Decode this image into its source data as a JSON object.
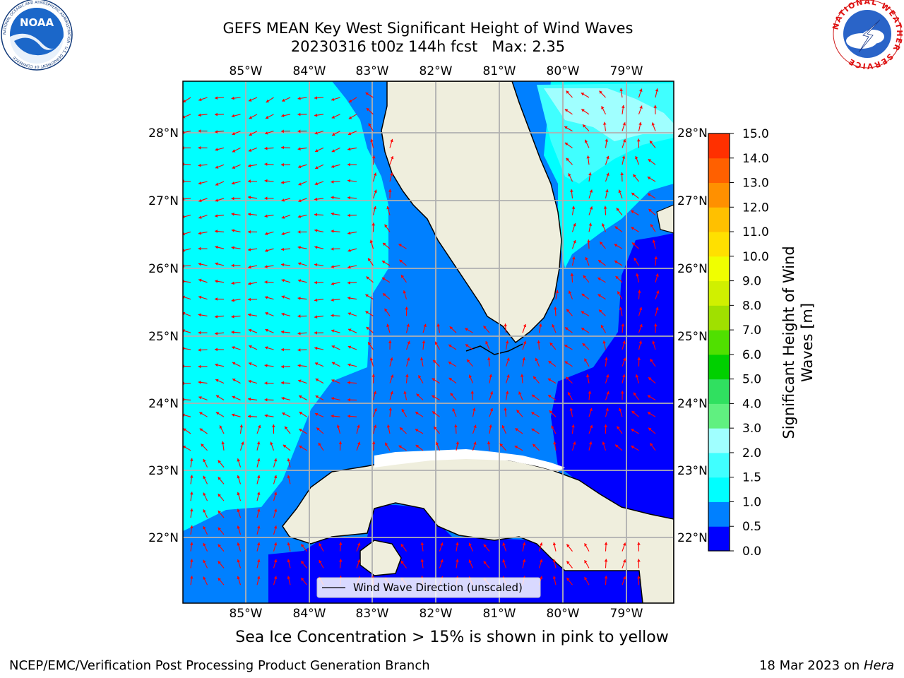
{
  "header": {
    "title_line1": "GEFS MEAN Key West Significant Height of Wind Waves",
    "title_line2": "20230316 t00z 144h fcst   Max: 2.35"
  },
  "logos": {
    "left": "NOAA",
    "left_ring_text": "NATIONAL OCEANIC AND ATMOSPHERIC ADMINISTRATION · U.S. DEPARTMENT OF COMMERCE",
    "right_ring_text": "NATIONAL WEATHER SERVICE"
  },
  "map": {
    "lon_labels": [
      "85°W",
      "84°W",
      "83°W",
      "82°W",
      "81°W",
      "80°W",
      "79°W"
    ],
    "lat_labels": [
      "28°N",
      "27°N",
      "26°N",
      "25°N",
      "24°N",
      "23°N",
      "22°N"
    ],
    "legend_label": "Wind Wave Direction (unscaled)",
    "colors": {
      "land": "#efeedd",
      "vector": "#ff0000",
      "grid": "#b0b0b0"
    }
  },
  "colorbar": {
    "label_line1": "Significant Height of Wind",
    "label_line2": "Waves [m]",
    "ticks": [
      "0.0",
      "0.5",
      "1.0",
      "1.5",
      "2.0",
      "3.0",
      "4.0",
      "5.0",
      "6.0",
      "7.0",
      "8.0",
      "9.0",
      "10.0",
      "11.0",
      "12.0",
      "13.0",
      "14.0",
      "15.0"
    ],
    "colors": [
      "#0000ff",
      "#0080ff",
      "#00ffff",
      "#40ffff",
      "#a0ffff",
      "#60f080",
      "#30e060",
      "#00d000",
      "#50e000",
      "#a0e000",
      "#d0f000",
      "#f0ff00",
      "#ffe000",
      "#ffc000",
      "#ff9000",
      "#ff6000",
      "#ff3000",
      "#ff0000"
    ]
  },
  "notes": {
    "ice": "Sea Ice Concentration > 15% is shown in pink to yellow",
    "credit": "NCEP/EMC/Verification Post Processing Product Generation Branch",
    "date_prefix": "18 Mar 2023 on ",
    "host": "Hera"
  }
}
